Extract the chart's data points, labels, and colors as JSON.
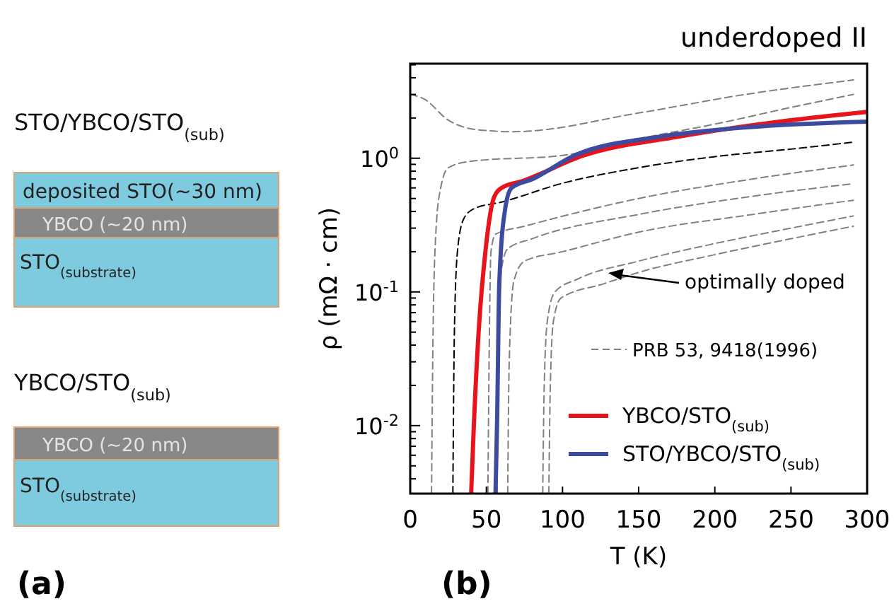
{
  "chart_data": [
    {
      "type": "other",
      "annotations": [
        "STO/YBCO/STO$_{(sub)}$",
        "deposited STO(~30 nm)",
        "YBCO (~20 nm)",
        "STO$_{(substrate)}$",
        "YBCO/STO$_{(sub)}$",
        "YBCO (~20 nm)",
        "STO$_{(substrate)}$",
        "(a)"
      ]
    },
    {
      "type": "line",
      "title": "underdoped II",
      "xlabel": "T (K)",
      "ylabel": "ρ  (mΩ · cm)",
      "log": "y",
      "xlim": [
        0,
        300
      ],
      "xticks": [
        0,
        50,
        100,
        150,
        200,
        250,
        300
      ],
      "ylim": [
        0.0031,
        5.1
      ],
      "yticks": [
        {
          "value": 0.004,
          "label": null
        },
        {
          "value": 0.005,
          "label": null
        },
        {
          "value": 0.006,
          "label": null
        },
        {
          "value": 0.007,
          "label": null
        },
        {
          "value": 0.008,
          "label": null
        },
        {
          "value": 0.009,
          "label": null
        },
        {
          "value": 0.01,
          "label": "10$^{-2}$"
        },
        {
          "value": 0.02,
          "label": null
        },
        {
          "value": 0.03,
          "label": null
        },
        {
          "value": 0.04,
          "label": null
        },
        {
          "value": 0.05,
          "label": null
        },
        {
          "value": 0.06,
          "label": null
        },
        {
          "value": 0.07,
          "label": null
        },
        {
          "value": 0.08,
          "label": null
        },
        {
          "value": 0.09,
          "label": null
        },
        {
          "value": 0.1,
          "label": "10$^{-1}$"
        },
        {
          "value": 0.2,
          "label": null
        },
        {
          "value": 0.3,
          "label": null
        },
        {
          "value": 0.4,
          "label": null
        },
        {
          "value": 0.5,
          "label": null
        },
        {
          "value": 0.6,
          "label": null
        },
        {
          "value": 0.7,
          "label": null
        },
        {
          "value": 0.8,
          "label": null
        },
        {
          "value": 0.9,
          "label": null
        },
        {
          "value": 1,
          "label": "10$^{0}$"
        },
        {
          "value": 2,
          "label": null
        },
        {
          "value": 3,
          "label": null
        },
        {
          "value": 4,
          "label": null
        },
        {
          "value": 5,
          "label": null
        }
      ],
      "grid": false,
      "legend": "bottom right",
      "series": [
        {
          "name": "PRB 53, 9418(1996)",
          "color": "#808080",
          "line_style": "dashed",
          "x": [
            0,
            9,
            25,
            43,
            68,
            150,
            220,
            291
          ],
          "values": [
            3.0,
            2.78,
            1.93,
            1.64,
            1.58,
            2.18,
            3.0,
            3.85
          ]
        },
        {
          "color": "#808080",
          "line_style": "dashed",
          "x": [
            14,
            15,
            17,
            20,
            25,
            40,
            100,
            150,
            200,
            250,
            291
          ],
          "values": [
            0.0031,
            0.05,
            0.3,
            0.6,
            0.85,
            0.95,
            1.05,
            1.4,
            1.8,
            2.4,
            3.0
          ]
        },
        {
          "color": "#000000",
          "line_style": "dashed",
          "x": [
            28,
            29,
            31,
            35,
            42,
            60,
            100,
            150,
            207,
            250,
            291
          ],
          "values": [
            0.0031,
            0.05,
            0.2,
            0.35,
            0.42,
            0.47,
            0.65,
            0.85,
            1.05,
            1.17,
            1.32
          ]
        },
        {
          "color": "#808080",
          "line_style": "dashed",
          "x": [
            51,
            52,
            53,
            56,
            75,
            150,
            225,
            291
          ],
          "values": [
            0.0031,
            0.05,
            0.2,
            0.27,
            0.31,
            0.5,
            0.7,
            0.89
          ]
        },
        {
          "color": "#808080",
          "line_style": "dashed",
          "x": [
            57,
            58,
            60,
            64,
            80,
            150,
            225,
            291
          ],
          "values": [
            0.0031,
            0.04,
            0.15,
            0.21,
            0.25,
            0.38,
            0.52,
            0.645
          ]
        },
        {
          "color": "#808080",
          "line_style": "dashed",
          "x": [
            64,
            65,
            68,
            75,
            100,
            150,
            225,
            291
          ],
          "values": [
            0.0031,
            0.03,
            0.12,
            0.17,
            0.2,
            0.28,
            0.38,
            0.485
          ]
        },
        {
          "color": "#808080",
          "line_style": "dashed",
          "x": [
            87,
            88,
            90,
            95,
            110,
            150,
            200,
            250,
            291
          ],
          "values": [
            0.0031,
            0.02,
            0.06,
            0.1,
            0.125,
            0.17,
            0.23,
            0.3,
            0.37
          ]
        },
        {
          "color": "#808080",
          "line_style": "dashed",
          "x": [
            91,
            92,
            94,
            99,
            127,
            150,
            200,
            250,
            291
          ],
          "values": [
            0.0031,
            0.02,
            0.06,
            0.09,
            0.115,
            0.14,
            0.19,
            0.25,
            0.31
          ]
        },
        {
          "name": "YBCO/STO$_{(sub)}$",
          "color": "#e8141c",
          "line_style": "solid",
          "x": [
            40,
            41.8,
            45,
            49.5,
            55,
            60,
            74,
            114,
            176,
            238,
            300
          ],
          "values": [
            0.0031,
            0.0102,
            0.052,
            0.207,
            0.51,
            0.6,
            0.677,
            1.05,
            1.45,
            1.85,
            2.22
          ]
        },
        {
          "name": "STO/YBCO/STO$_{(sub)}$",
          "color": "#3c4ba0",
          "line_style": "solid",
          "x": [
            56,
            57,
            58.5,
            62.5,
            66.5,
            80.5,
            108,
            164,
            223,
            300
          ],
          "values": [
            0.0031,
            0.0102,
            0.117,
            0.43,
            0.6,
            0.7,
            1.05,
            1.45,
            1.71,
            1.88
          ]
        }
      ],
      "annotations": [
        "optimally doped",
        "(b)"
      ]
    }
  ]
}
